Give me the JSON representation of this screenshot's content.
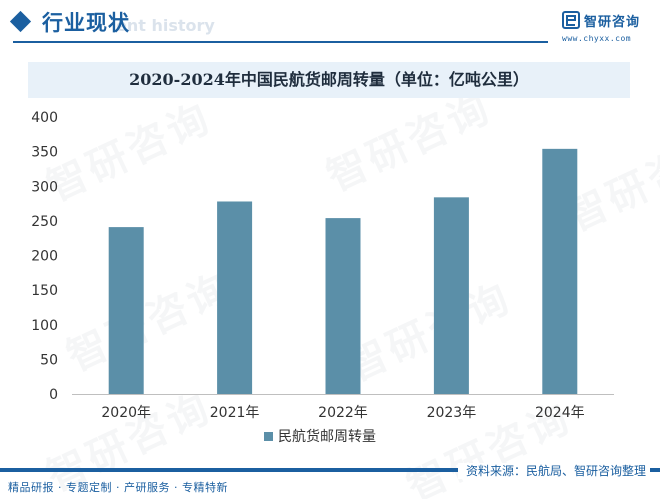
{
  "header": {
    "section_title": "行业现状",
    "ghost_text": "ent history",
    "logo_name": "智研咨询",
    "logo_url": "www.chyxx.com"
  },
  "watermark_text": "智研咨询",
  "chart_data": {
    "type": "bar",
    "title": "2020-2024年中国民航货邮周转量（单位：亿吨公里）",
    "categories": [
      "2020年",
      "2021年",
      "2022年",
      "2023年",
      "2024年"
    ],
    "series": [
      {
        "name": "民航货邮周转量",
        "values": [
          241,
          278,
          254,
          284,
          354
        ]
      }
    ],
    "ylim": [
      0,
      400
    ],
    "yticks": [
      0,
      50,
      100,
      150,
      200,
      250,
      300,
      350,
      400
    ],
    "grid": false,
    "legend": "bottom",
    "bar_color": "#5b8fa8"
  },
  "footer": {
    "left": "精品研报 · 专题定制 · 产研服务 · 专精特新",
    "right": "资料来源：民航局、智研咨询整理"
  }
}
